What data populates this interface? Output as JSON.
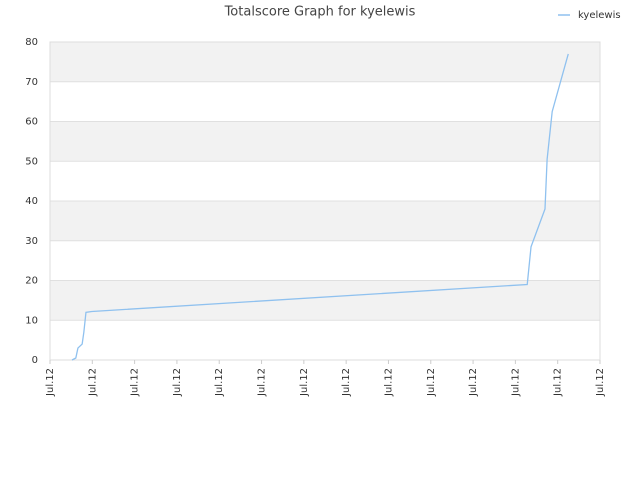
{
  "chart_data": {
    "type": "line",
    "title": "Totalscore Graph for kyelewis",
    "x": [
      0.52,
      0.61,
      0.66,
      0.76,
      0.8,
      0.85,
      0.99,
      11.28,
      11.37,
      11.7,
      11.75,
      11.87,
      12.25
    ],
    "series": [
      {
        "name": "kyelewis",
        "color": "#8fc1ef",
        "values": [
          0,
          0.5,
          3,
          4,
          7,
          12,
          12.2,
          19,
          28.5,
          38,
          50.5,
          62.5,
          77
        ]
      }
    ],
    "xlim": [
      0,
      13
    ],
    "xticks": [
      {
        "value": 0,
        "label": "Jul.12"
      },
      {
        "value": 1,
        "label": "Jul.12"
      },
      {
        "value": 2,
        "label": "Jul.12"
      },
      {
        "value": 3,
        "label": "Jul.12"
      },
      {
        "value": 4,
        "label": "Jul.12"
      },
      {
        "value": 5,
        "label": "Jul.12"
      },
      {
        "value": 6,
        "label": "Jul.12"
      },
      {
        "value": 7,
        "label": "Jul.12"
      },
      {
        "value": 8,
        "label": "Jul.12"
      },
      {
        "value": 9,
        "label": "Jul.12"
      },
      {
        "value": 10,
        "label": "Jul.12"
      },
      {
        "value": 11,
        "label": "Jul.12"
      },
      {
        "value": 12,
        "label": "Jul.12"
      },
      {
        "value": 13,
        "label": "Jul.12"
      }
    ],
    "ylim": [
      0,
      80
    ],
    "yticks": [
      0,
      10,
      20,
      30,
      40,
      50,
      60,
      70,
      80
    ],
    "grid": true,
    "legend": "top-right"
  }
}
